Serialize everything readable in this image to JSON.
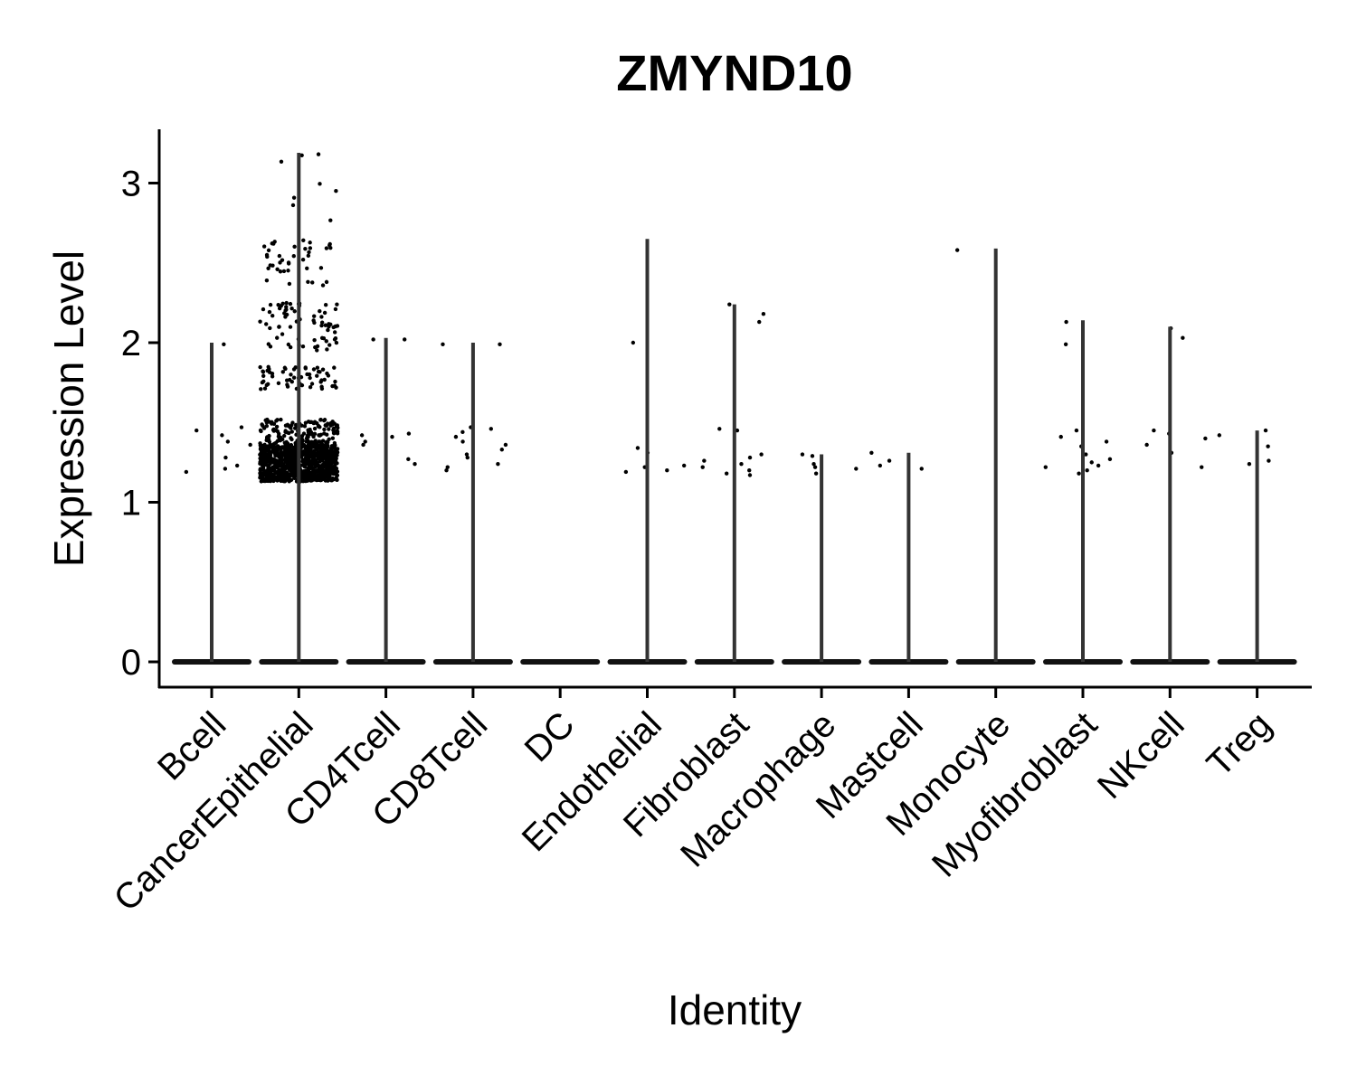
{
  "chart_data": {
    "type": "violin",
    "title": "ZMYND10",
    "xlabel": "Identity",
    "ylabel": "Expression Level",
    "ylim": [
      -0.15,
      3.35
    ],
    "yticks": [
      "0",
      "1",
      "2",
      "3"
    ],
    "categories": [
      "Bcell",
      "CancerEpithelial",
      "CD4Tcell",
      "CD8Tcell",
      "DC",
      "Endothelial",
      "Fibroblast",
      "Macrophage",
      "Mastcell",
      "Monocyte",
      "Myofibroblast",
      "NKcell",
      "Treg"
    ],
    "max_values": [
      2.0,
      3.19,
      2.03,
      2.0,
      0.0,
      2.65,
      2.24,
      1.3,
      1.31,
      2.59,
      2.14,
      2.1,
      1.45
    ],
    "expressing_points": [
      [
        1.99,
        1.45,
        1.42,
        1.36,
        1.28,
        1.21,
        1.19,
        1.47,
        1.38,
        1.23
      ],
      [],
      [
        2.02,
        2.02,
        1.43,
        1.42,
        1.41,
        1.38,
        1.36,
        1.27,
        1.24
      ],
      [
        1.99,
        1.99,
        1.47,
        1.46,
        1.44,
        1.41,
        1.38,
        1.36,
        1.33,
        1.3,
        1.28,
        1.24,
        1.22,
        1.2
      ],
      [],
      [
        2.0,
        1.34,
        1.31,
        1.23,
        1.22,
        1.2,
        1.19
      ],
      [
        2.24,
        2.18,
        2.13,
        1.46,
        1.45,
        1.3,
        1.28,
        1.26,
        1.24,
        1.22,
        1.2,
        1.18,
        1.17
      ],
      [
        1.3,
        1.29,
        1.24,
        1.22,
        1.21,
        1.18
      ],
      [
        1.31,
        1.26,
        1.23,
        1.21
      ],
      [
        2.58
      ],
      [
        2.13,
        1.99,
        1.45,
        1.41,
        1.38,
        1.35,
        1.3,
        1.27,
        1.25,
        1.23,
        1.22,
        1.2,
        1.18
      ],
      [
        2.09,
        2.03,
        1.45,
        1.43,
        1.4,
        1.36,
        1.31,
        1.22
      ],
      [
        1.45,
        1.42,
        1.35,
        1.26,
        1.24
      ]
    ]
  }
}
